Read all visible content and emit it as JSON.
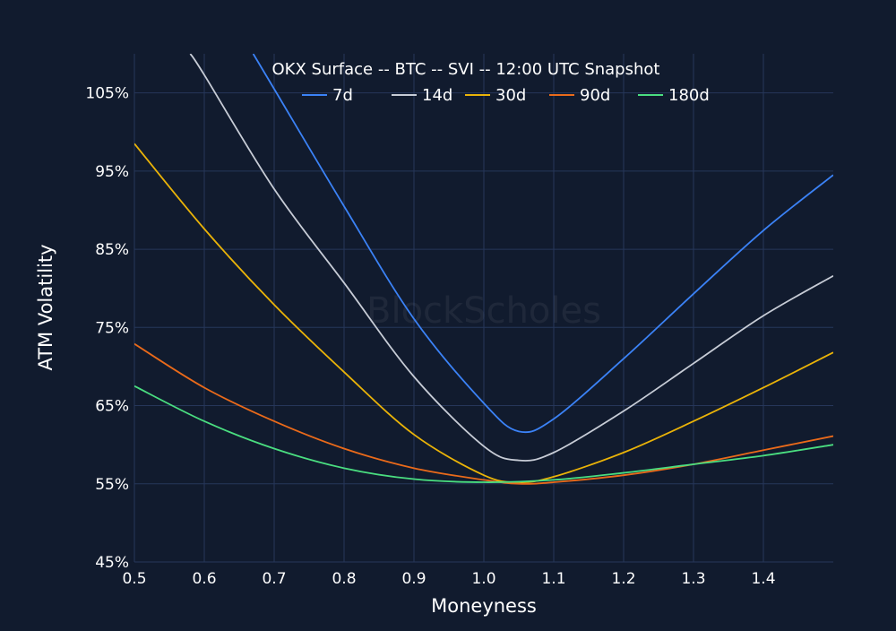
{
  "chart_data": {
    "type": "line",
    "title": "OKX Surface -- BTC -- SVI -- 12:00 UTC Snapshot",
    "xlabel": "Moneyness",
    "ylabel": "ATM Volatility",
    "xlim": [
      0.5,
      1.5
    ],
    "ylim": [
      45,
      110
    ],
    "x_ticks": [
      "0.5",
      "0.6",
      "0.7",
      "0.8",
      "0.9",
      "1.0",
      "1.1",
      "1.2",
      "1.3",
      "1.4"
    ],
    "x_tick_values": [
      0.5,
      0.6,
      0.7,
      0.8,
      0.9,
      1.0,
      1.1,
      1.2,
      1.3,
      1.4
    ],
    "y_ticks": [
      "45%",
      "55%",
      "65%",
      "75%",
      "85%",
      "95%",
      "105%"
    ],
    "y_tick_values": [
      45,
      55,
      65,
      75,
      85,
      95,
      105
    ],
    "grid": true,
    "legend_placement": "top-center",
    "watermark": "BlockScholes",
    "background": "#111b2e",
    "grid_color": "#26375a",
    "series": [
      {
        "name": "7d",
        "color": "#3b82f6",
        "x": [
          0.67,
          0.7,
          0.8,
          0.9,
          1.0,
          1.05,
          1.1,
          1.2,
          1.3,
          1.4,
          1.5
        ],
        "y": [
          110,
          105.5,
          90.5,
          76.1,
          65.3,
          61.7,
          63.3,
          71,
          79.3,
          87.4,
          94.5
        ]
      },
      {
        "name": "14d",
        "color": "#c7ccd6",
        "x": [
          0.58,
          0.6,
          0.7,
          0.8,
          0.9,
          1.0,
          1.05,
          1.1,
          1.2,
          1.3,
          1.4,
          1.5
        ],
        "y": [
          110,
          107.3,
          92.7,
          80.7,
          68.7,
          59.8,
          58.0,
          59.0,
          64.3,
          70.4,
          76.5,
          81.6
        ]
      },
      {
        "name": "30d",
        "color": "#eab308",
        "x": [
          0.5,
          0.6,
          0.7,
          0.8,
          0.9,
          1.0,
          1.05,
          1.1,
          1.2,
          1.3,
          1.4,
          1.5
        ],
        "y": [
          98.5,
          87.6,
          77.9,
          69.3,
          61.3,
          56.1,
          55.2,
          55.9,
          59.0,
          63.0,
          67.3,
          71.8
        ]
      },
      {
        "name": "90d",
        "color": "#ea6a1a",
        "x": [
          0.5,
          0.6,
          0.7,
          0.8,
          0.9,
          1.0,
          1.05,
          1.1,
          1.2,
          1.3,
          1.4,
          1.5
        ],
        "y": [
          72.9,
          67.3,
          63.0,
          59.5,
          57.0,
          55.5,
          55.0,
          55.2,
          56.1,
          57.5,
          59.3,
          61.1
        ]
      },
      {
        "name": "180d",
        "color": "#4ade80",
        "x": [
          0.5,
          0.6,
          0.7,
          0.8,
          0.9,
          1.0,
          1.1,
          1.2,
          1.3,
          1.4,
          1.5
        ],
        "y": [
          67.5,
          63.0,
          59.5,
          57.0,
          55.6,
          55.2,
          55.5,
          56.4,
          57.5,
          58.6,
          60.0
        ]
      }
    ]
  }
}
